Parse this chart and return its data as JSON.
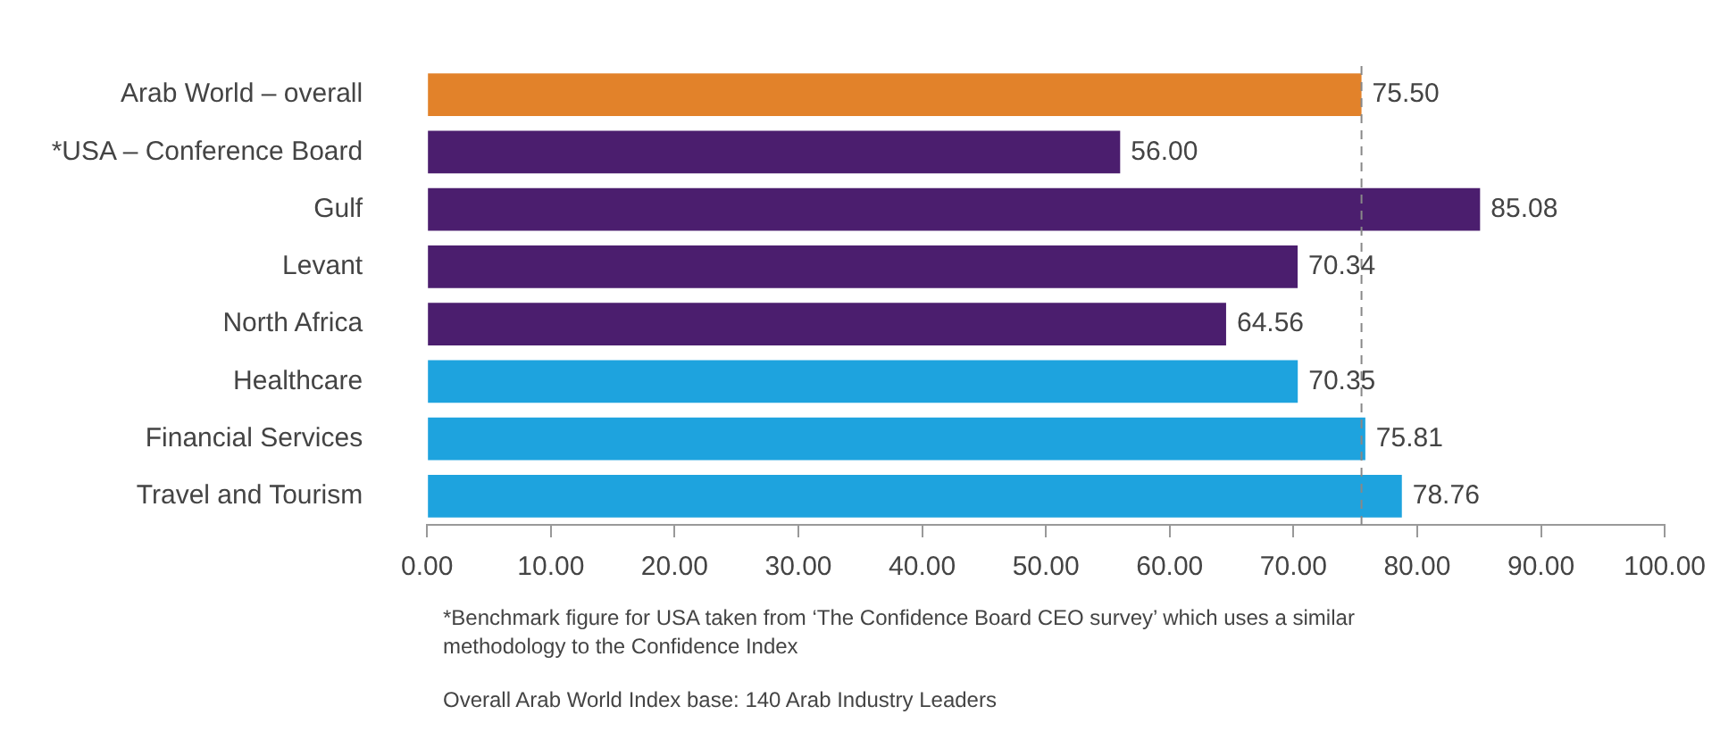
{
  "chart_data": {
    "type": "bar",
    "orientation": "horizontal",
    "categories": [
      "Arab World – overall",
      "*USA – Conference Board",
      "Gulf",
      "Levant",
      "North Africa",
      "Healthcare",
      "Financial Services",
      "Travel and Tourism"
    ],
    "values": [
      75.5,
      56.0,
      85.08,
      70.34,
      64.56,
      70.35,
      75.81,
      78.76
    ],
    "value_labels": [
      "75.50",
      "56.00",
      "85.08",
      "70.34",
      "64.56",
      "70.35",
      "75.81",
      "78.76"
    ],
    "colors": [
      "#e2822a",
      "#4b1e6e",
      "#4b1e6e",
      "#4b1e6e",
      "#4b1e6e",
      "#1ea3de",
      "#1ea3de",
      "#1ea3de"
    ],
    "xlim": [
      0,
      100
    ],
    "xticks": [
      {
        "value": 0,
        "label": "0.00"
      },
      {
        "value": 10,
        "label": "10.00"
      },
      {
        "value": 20,
        "label": "20.00"
      },
      {
        "value": 30,
        "label": "30.00"
      },
      {
        "value": 40,
        "label": "40.00"
      },
      {
        "value": 50,
        "label": "50.00"
      },
      {
        "value": 60,
        "label": "60.00"
      },
      {
        "value": 70,
        "label": "70.00"
      },
      {
        "value": 80,
        "label": "80.00"
      },
      {
        "value": 90,
        "label": "90.00"
      },
      {
        "value": 100,
        "label": "100.00"
      }
    ],
    "ref_lines": [
      {
        "axis": "x",
        "value": 75.5,
        "line_style": "dashed",
        "color": "#888888"
      }
    ],
    "grid": false,
    "legend": false,
    "annotations": [
      "*Benchmark figure for USA taken from ‘The Confidence Board CEO survey’ which uses a similar methodology to the Confidence Index",
      "Overall Arab World Index base: 140 Arab Industry Leaders"
    ]
  }
}
